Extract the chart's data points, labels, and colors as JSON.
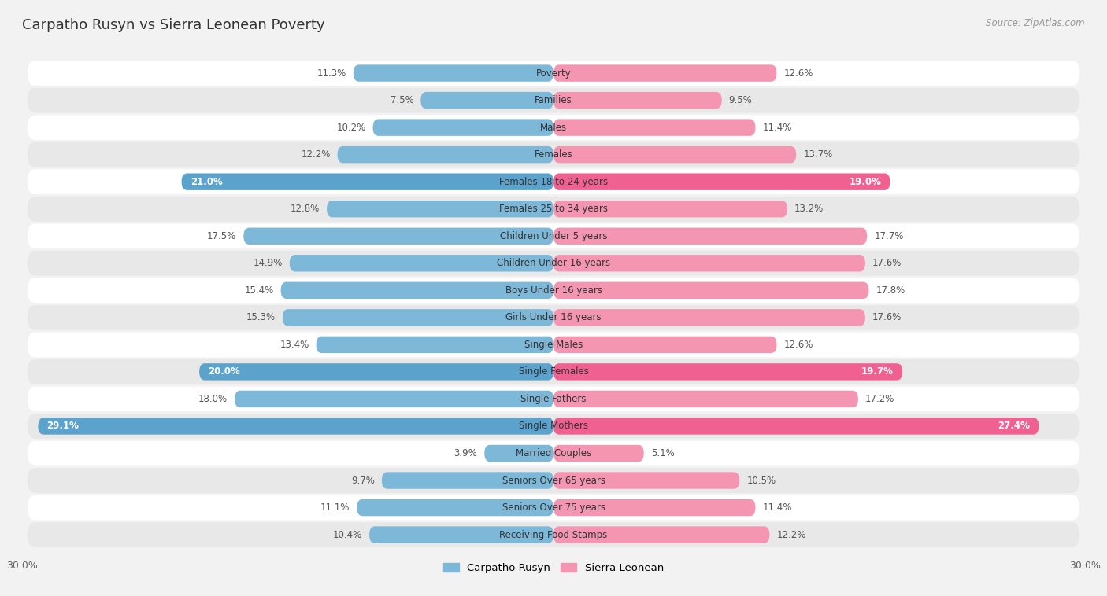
{
  "title": "Carpatho Rusyn vs Sierra Leonean Poverty",
  "source": "Source: ZipAtlas.com",
  "categories": [
    "Poverty",
    "Families",
    "Males",
    "Females",
    "Females 18 to 24 years",
    "Females 25 to 34 years",
    "Children Under 5 years",
    "Children Under 16 years",
    "Boys Under 16 years",
    "Girls Under 16 years",
    "Single Males",
    "Single Females",
    "Single Fathers",
    "Single Mothers",
    "Married Couples",
    "Seniors Over 65 years",
    "Seniors Over 75 years",
    "Receiving Food Stamps"
  ],
  "left_values": [
    11.3,
    7.5,
    10.2,
    12.2,
    21.0,
    12.8,
    17.5,
    14.9,
    15.4,
    15.3,
    13.4,
    20.0,
    18.0,
    29.1,
    3.9,
    9.7,
    11.1,
    10.4
  ],
  "right_values": [
    12.6,
    9.5,
    11.4,
    13.7,
    19.0,
    13.2,
    17.7,
    17.6,
    17.8,
    17.6,
    12.6,
    19.7,
    17.2,
    27.4,
    5.1,
    10.5,
    11.4,
    12.2
  ],
  "left_color": "#7db8d8",
  "right_color": "#f495b2",
  "highlight_left_color": "#5ba3cc",
  "highlight_right_color": "#f06090",
  "background_color": "#f2f2f2",
  "row_light_color": "#ffffff",
  "row_dark_color": "#e8e8e8",
  "xlim": 30.0,
  "legend_left": "Carpatho Rusyn",
  "legend_right": "Sierra Leonean",
  "highlight_rows": [
    4,
    11,
    13
  ]
}
